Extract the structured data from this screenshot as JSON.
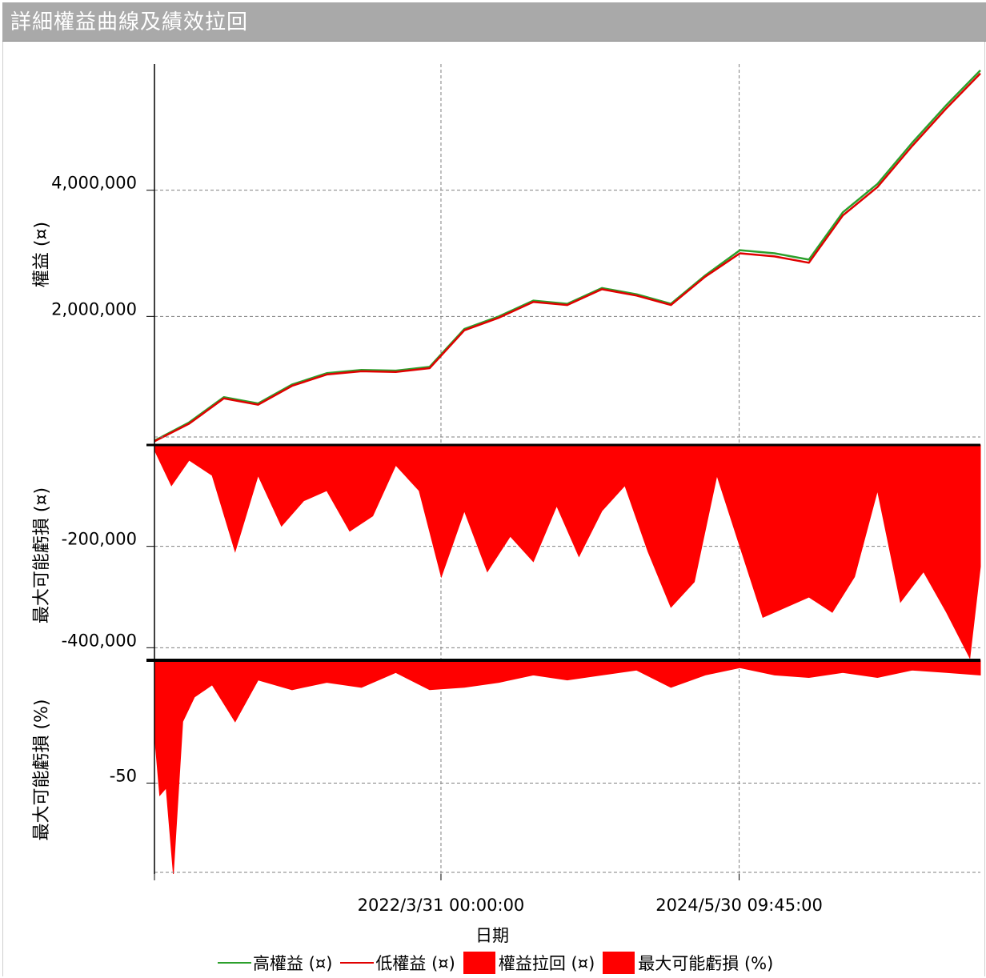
{
  "window": {
    "title": "詳細權益曲線及績效拉回"
  },
  "colors": {
    "high_equity": "#2ca02c",
    "low_equity": "#e00000",
    "drawdown_fill": "#ff0000",
    "grid": "#808080",
    "panel_border": "#000000"
  },
  "chart_data": [
    {
      "type": "line",
      "ylabel": "權益 (¤)",
      "yticks": [
        2000000,
        4000000
      ],
      "ytick_labels": [
        "2,000,000",
        "4,000,000"
      ],
      "ylim": [
        0,
        6000000
      ],
      "grid": true,
      "series": [
        {
          "name": "高權益 (¤)",
          "color": "#2ca02c",
          "x": [
            "2020-03-01",
            "2020-06-01",
            "2020-09-01",
            "2020-12-01",
            "2021-03-01",
            "2021-06-01",
            "2021-09-01",
            "2021-12-01",
            "2022-03-01",
            "2022-06-01",
            "2022-09-01",
            "2022-12-01",
            "2023-03-01",
            "2023-06-01",
            "2023-09-01",
            "2023-12-01",
            "2024-03-01",
            "2024-06-01",
            "2024-09-01",
            "2024-12-01",
            "2025-03-01",
            "2025-06-01",
            "2025-09-01",
            "2025-12-01",
            "2026-03-01"
          ],
          "y": [
            30000,
            320000,
            720000,
            620000,
            920000,
            1100000,
            1150000,
            1140000,
            1200000,
            1800000,
            2000000,
            2250000,
            2200000,
            2450000,
            2350000,
            2200000,
            2650000,
            3050000,
            3000000,
            2900000,
            3650000,
            4100000,
            4750000,
            5350000,
            5900000
          ]
        },
        {
          "name": "低權益 (¤)",
          "color": "#e00000",
          "x": [
            "2020-03-01",
            "2020-06-01",
            "2020-09-01",
            "2020-12-01",
            "2021-03-01",
            "2021-06-01",
            "2021-09-01",
            "2021-12-01",
            "2022-03-01",
            "2022-06-01",
            "2022-09-01",
            "2022-12-01",
            "2023-03-01",
            "2023-06-01",
            "2023-09-01",
            "2023-12-01",
            "2024-03-01",
            "2024-06-01",
            "2024-09-01",
            "2024-12-01",
            "2025-03-01",
            "2025-06-01",
            "2025-09-01",
            "2025-12-01",
            "2026-03-01"
          ],
          "y": [
            20000,
            300000,
            700000,
            600000,
            900000,
            1080000,
            1130000,
            1120000,
            1180000,
            1780000,
            1980000,
            2230000,
            2180000,
            2430000,
            2330000,
            2180000,
            2630000,
            3000000,
            2950000,
            2850000,
            3600000,
            4050000,
            4700000,
            5300000,
            5850000
          ]
        }
      ]
    },
    {
      "type": "area",
      "ylabel": "最大可能虧損 (¤)",
      "yticks": [
        -200000,
        -400000
      ],
      "ytick_labels": [
        "-200,000",
        "-400,000"
      ],
      "ylim": [
        -420000,
        0
      ],
      "grid": true,
      "series": [
        {
          "name": "權益拉回 (¤)",
          "color": "#ff0000",
          "x": [
            "2020-03-01",
            "2020-04-15",
            "2020-06-01",
            "2020-08-01",
            "2020-10-01",
            "2020-12-01",
            "2021-02-01",
            "2021-04-01",
            "2021-06-01",
            "2021-08-01",
            "2021-10-01",
            "2021-12-01",
            "2022-02-01",
            "2022-04-01",
            "2022-06-01",
            "2022-08-01",
            "2022-10-01",
            "2022-12-01",
            "2023-02-01",
            "2023-04-01",
            "2023-06-01",
            "2023-08-01",
            "2023-10-01",
            "2023-12-01",
            "2024-02-01",
            "2024-04-01",
            "2024-06-01",
            "2024-08-01",
            "2024-10-01",
            "2024-12-01",
            "2025-02-01",
            "2025-04-01",
            "2025-06-01",
            "2025-08-01",
            "2025-10-01",
            "2025-12-01",
            "2026-02-01",
            "2026-03-01"
          ],
          "y": [
            -10000,
            -80000,
            -30000,
            -60000,
            -210000,
            -60000,
            -160000,
            -110000,
            -90000,
            -170000,
            -140000,
            -40000,
            -90000,
            -260000,
            -130000,
            -250000,
            -180000,
            -230000,
            -120000,
            -220000,
            -130000,
            -80000,
            -210000,
            -320000,
            -270000,
            -60000,
            -200000,
            -340000,
            -320000,
            -300000,
            -330000,
            -260000,
            -90000,
            -310000,
            -250000,
            -330000,
            -420000,
            -240000
          ]
        }
      ]
    },
    {
      "type": "area",
      "ylabel": "最大可能虧損 (%)",
      "yticks": [
        -50
      ],
      "ytick_labels": [
        "-50"
      ],
      "ylim": [
        -87,
        0
      ],
      "grid": true,
      "series": [
        {
          "name": "最大可能虧損 (%)",
          "color": "#ff0000",
          "x": [
            "2020-03-01",
            "2020-03-15",
            "2020-04-01",
            "2020-04-20",
            "2020-05-15",
            "2020-06-15",
            "2020-08-01",
            "2020-10-01",
            "2020-12-01",
            "2021-03-01",
            "2021-06-01",
            "2021-09-01",
            "2021-12-01",
            "2022-03-01",
            "2022-06-01",
            "2022-09-01",
            "2022-12-01",
            "2023-03-01",
            "2023-06-01",
            "2023-09-01",
            "2023-12-01",
            "2024-03-01",
            "2024-06-01",
            "2024-09-01",
            "2024-12-01",
            "2025-03-01",
            "2025-06-01",
            "2025-09-01",
            "2025-12-01",
            "2026-03-01"
          ],
          "y": [
            -30,
            -55,
            -52,
            -87,
            -25,
            -15,
            -10,
            -25,
            -8,
            -12,
            -9,
            -11,
            -5,
            -12,
            -11,
            -9,
            -6,
            -8,
            -6,
            -4,
            -11,
            -6,
            -3,
            -6,
            -7,
            -5,
            -7,
            -4,
            -5,
            -6
          ]
        }
      ]
    }
  ],
  "xaxis": {
    "label": "日期",
    "tick_labels": [
      "2022/3/31 00:00:00",
      "2024/5/30 09:45:00"
    ],
    "ticks": [
      "2022-03-31",
      "2024-05-30"
    ],
    "range": [
      "2020-03-01",
      "2026-03-01"
    ]
  },
  "legend": {
    "items": [
      {
        "label": "高權益 (¤)",
        "kind": "line",
        "color": "#2ca02c",
        "icon": "green-line"
      },
      {
        "label": "低權益 (¤)",
        "kind": "line",
        "color": "#e00000",
        "icon": "red-line"
      },
      {
        "label": "權益拉回 (¤)",
        "kind": "box",
        "color": "#ff0000",
        "icon": "red-box"
      },
      {
        "label": "最大可能虧損 (%)",
        "kind": "box",
        "color": "#ff0000",
        "icon": "red-box"
      }
    ]
  }
}
